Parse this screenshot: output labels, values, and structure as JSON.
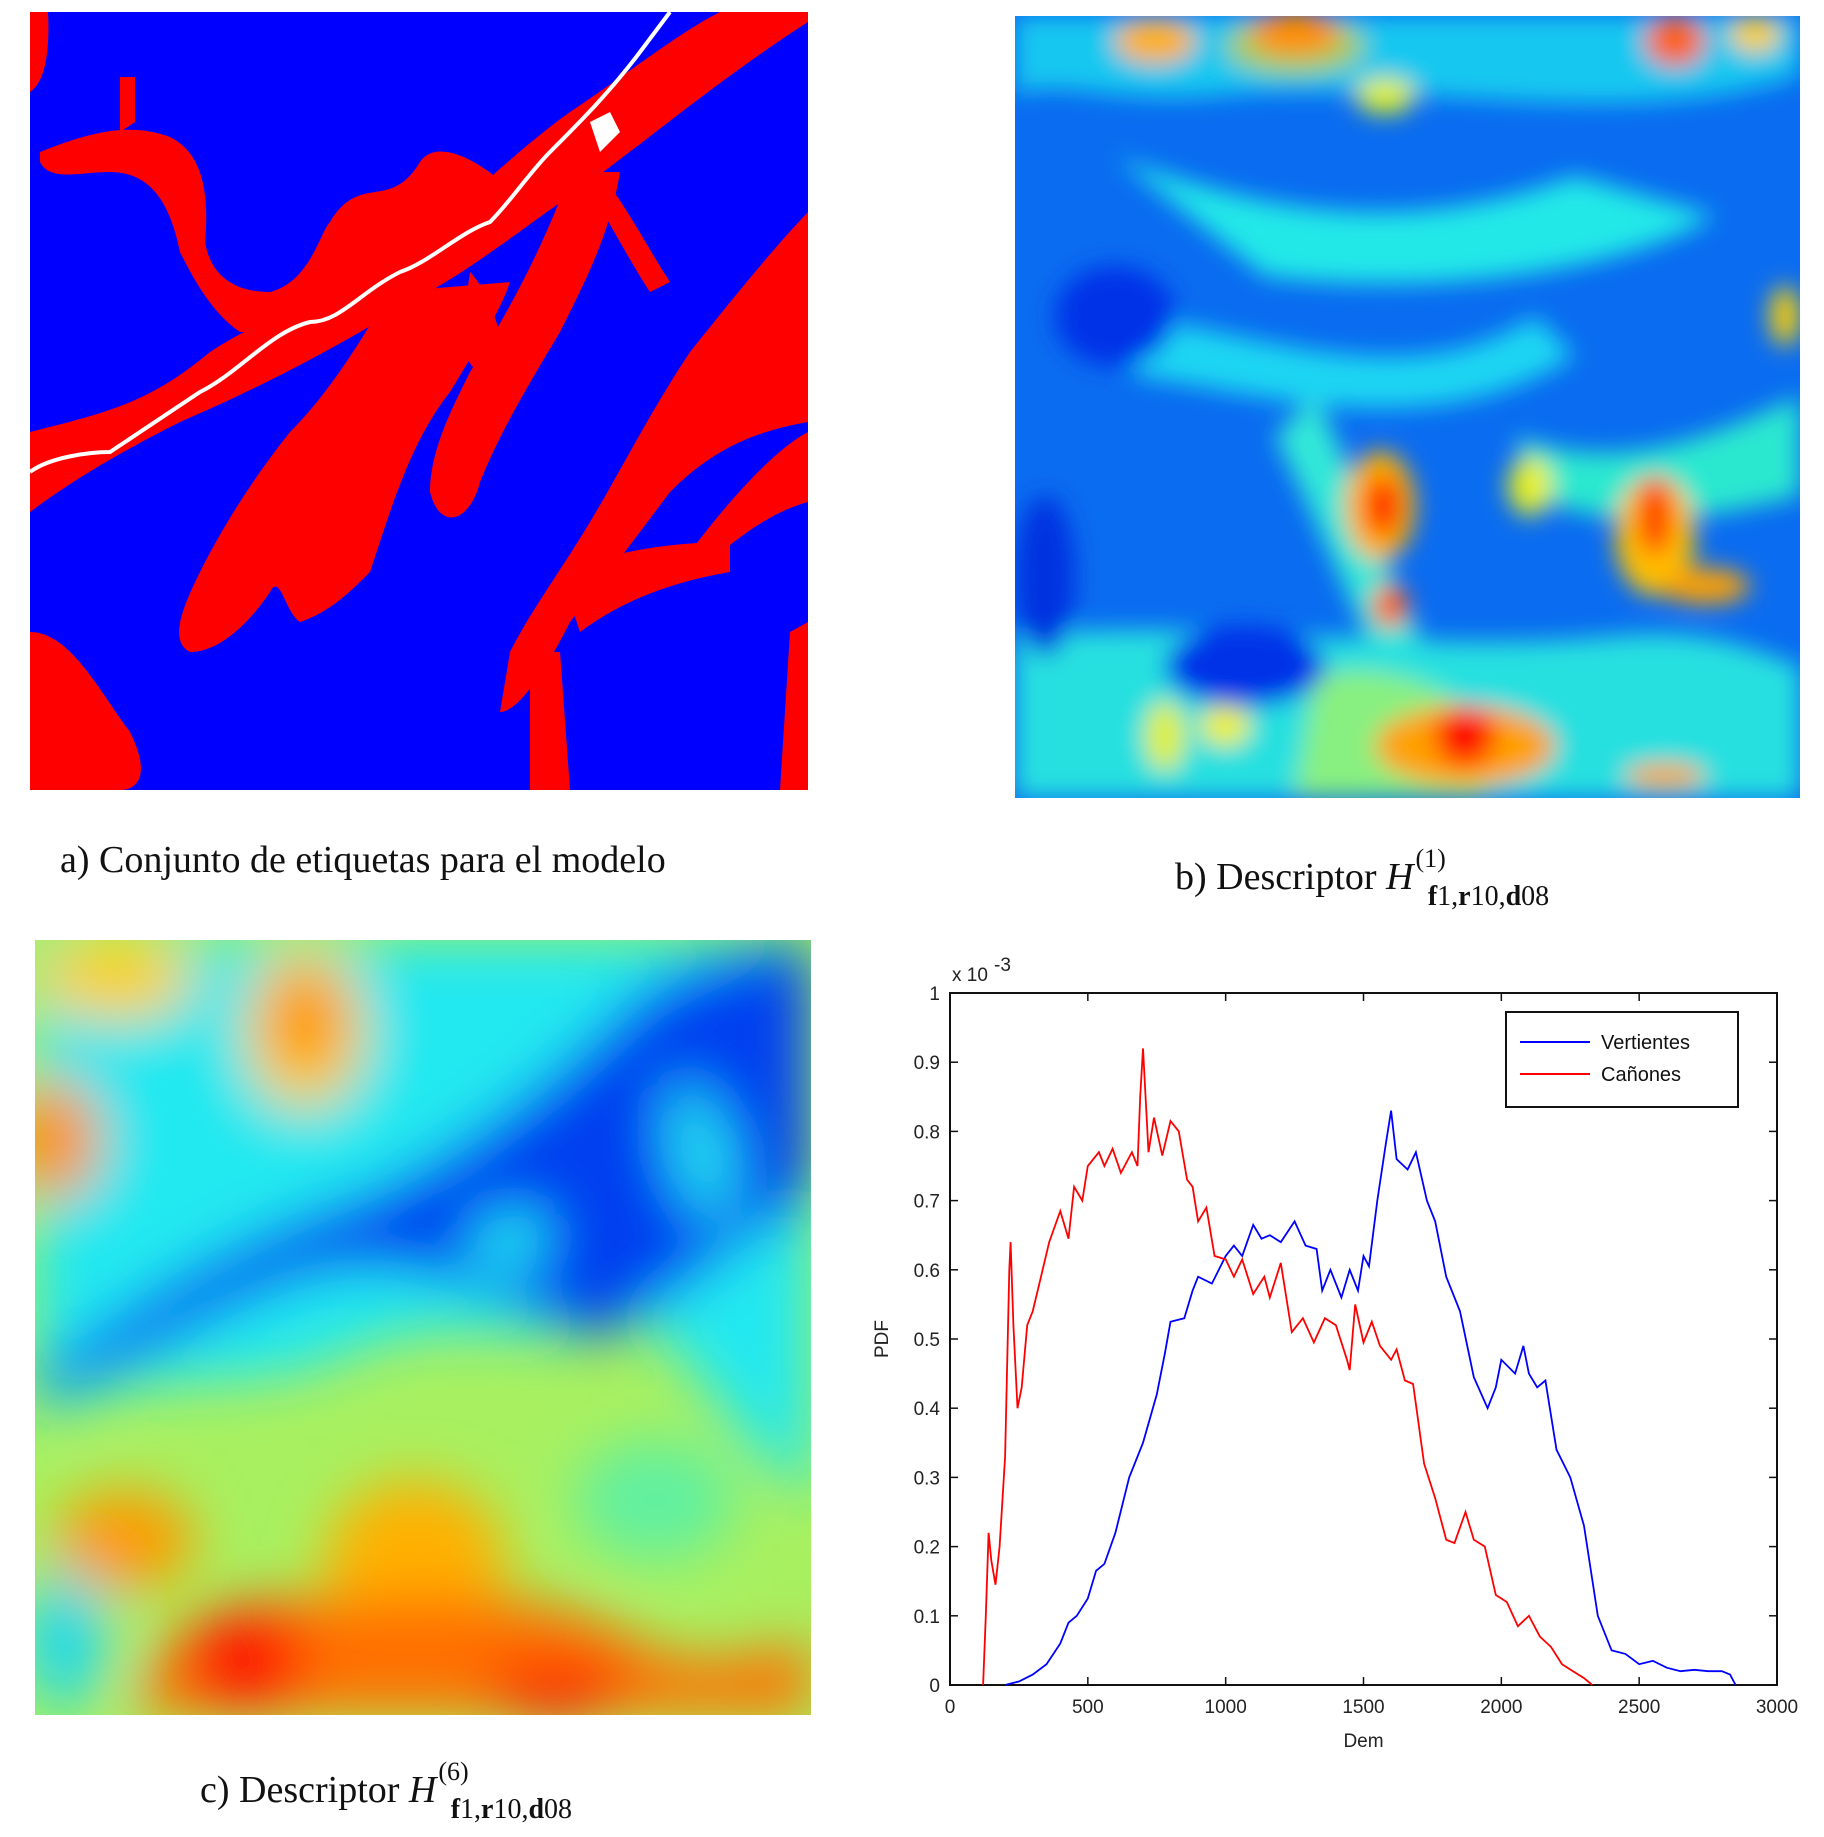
{
  "figure": {
    "panels": [
      {
        "id": "a",
        "type": "label-map",
        "caption_prefix": "a)",
        "caption_text": "Conjunto de etiquetas para el modelo",
        "colors": {
          "background": "#0000ff",
          "labels": "#ff0000",
          "river": "#ffffff"
        }
      },
      {
        "id": "b",
        "type": "heatmap",
        "caption_prefix": "b)",
        "caption_text": "Descriptor",
        "math_symbol": "H",
        "superscript": "(1)",
        "subscript_parts": [
          "f",
          "1,",
          "r",
          "10,",
          "d",
          "08"
        ],
        "colormap": "jet"
      },
      {
        "id": "c",
        "type": "heatmap",
        "caption_prefix": "c)",
        "caption_text": "Descriptor",
        "math_symbol": "H",
        "superscript": "(6)",
        "subscript_parts": [
          "f",
          "1,",
          "r",
          "10,",
          "d",
          "08"
        ],
        "colormap": "jet"
      }
    ]
  },
  "chart_data": {
    "type": "line",
    "title": "",
    "xlabel": "Dem",
    "ylabel": "PDF",
    "y_scale_note": "x 10^-3",
    "xlim": [
      0,
      3000
    ],
    "ylim": [
      0,
      1
    ],
    "x_ticks": [
      "0",
      "500",
      "1000",
      "1500",
      "2000",
      "2500",
      "3000"
    ],
    "y_ticks": [
      "0",
      "0.1",
      "0.2",
      "0.3",
      "0.4",
      "0.5",
      "0.6",
      "0.7",
      "0.8",
      "0.9",
      "1"
    ],
    "grid": false,
    "legend_position": "upper right",
    "series": [
      {
        "name": "Vertientes",
        "color": "#0000ff",
        "x": [
          200,
          250,
          300,
          350,
          400,
          430,
          460,
          500,
          530,
          560,
          600,
          650,
          700,
          750,
          780,
          800,
          850,
          880,
          900,
          950,
          1000,
          1030,
          1060,
          1100,
          1130,
          1160,
          1200,
          1250,
          1290,
          1330,
          1350,
          1380,
          1420,
          1450,
          1480,
          1500,
          1520,
          1550,
          1580,
          1600,
          1620,
          1660,
          1690,
          1730,
          1760,
          1800,
          1850,
          1900,
          1950,
          1980,
          2000,
          2050,
          2080,
          2100,
          2130,
          2160,
          2200,
          2250,
          2300,
          2350,
          2400,
          2450,
          2500,
          2550,
          2600,
          2650,
          2700,
          2750,
          2800,
          2830,
          2850
        ],
        "values": [
          0.0,
          0.005,
          0.015,
          0.03,
          0.06,
          0.09,
          0.1,
          0.125,
          0.165,
          0.175,
          0.22,
          0.3,
          0.35,
          0.42,
          0.48,
          0.525,
          0.53,
          0.57,
          0.59,
          0.58,
          0.62,
          0.635,
          0.62,
          0.665,
          0.645,
          0.65,
          0.64,
          0.67,
          0.635,
          0.63,
          0.57,
          0.6,
          0.56,
          0.6,
          0.57,
          0.62,
          0.605,
          0.7,
          0.78,
          0.83,
          0.76,
          0.745,
          0.77,
          0.7,
          0.67,
          0.59,
          0.54,
          0.445,
          0.4,
          0.43,
          0.47,
          0.45,
          0.49,
          0.45,
          0.43,
          0.44,
          0.34,
          0.3,
          0.23,
          0.1,
          0.05,
          0.045,
          0.03,
          0.035,
          0.025,
          0.02,
          0.022,
          0.02,
          0.02,
          0.015,
          0.0
        ]
      },
      {
        "name": "Cañones",
        "color": "#ff0000",
        "x": [
          120,
          130,
          140,
          150,
          165,
          180,
          200,
          215,
          220,
          230,
          245,
          260,
          280,
          300,
          330,
          360,
          400,
          430,
          450,
          480,
          500,
          540,
          560,
          590,
          620,
          660,
          680,
          690,
          700,
          720,
          740,
          770,
          800,
          830,
          860,
          880,
          900,
          930,
          960,
          1000,
          1030,
          1060,
          1100,
          1140,
          1160,
          1200,
          1240,
          1280,
          1320,
          1360,
          1400,
          1440,
          1450,
          1470,
          1500,
          1530,
          1560,
          1600,
          1620,
          1650,
          1680,
          1720,
          1760,
          1800,
          1830,
          1870,
          1900,
          1940,
          1980,
          2020,
          2060,
          2100,
          2140,
          2180,
          2220,
          2260,
          2300,
          2330
        ],
        "values": [
          0.0,
          0.1,
          0.22,
          0.18,
          0.145,
          0.2,
          0.33,
          0.6,
          0.64,
          0.52,
          0.4,
          0.43,
          0.52,
          0.54,
          0.59,
          0.64,
          0.685,
          0.645,
          0.72,
          0.7,
          0.75,
          0.77,
          0.75,
          0.775,
          0.74,
          0.77,
          0.75,
          0.85,
          0.92,
          0.77,
          0.82,
          0.765,
          0.815,
          0.8,
          0.73,
          0.72,
          0.67,
          0.69,
          0.62,
          0.615,
          0.59,
          0.615,
          0.565,
          0.59,
          0.56,
          0.61,
          0.51,
          0.53,
          0.495,
          0.53,
          0.52,
          0.47,
          0.455,
          0.55,
          0.495,
          0.525,
          0.49,
          0.47,
          0.485,
          0.44,
          0.435,
          0.32,
          0.27,
          0.21,
          0.205,
          0.25,
          0.21,
          0.2,
          0.13,
          0.12,
          0.085,
          0.1,
          0.07,
          0.055,
          0.03,
          0.02,
          0.01,
          0.0
        ]
      }
    ]
  }
}
